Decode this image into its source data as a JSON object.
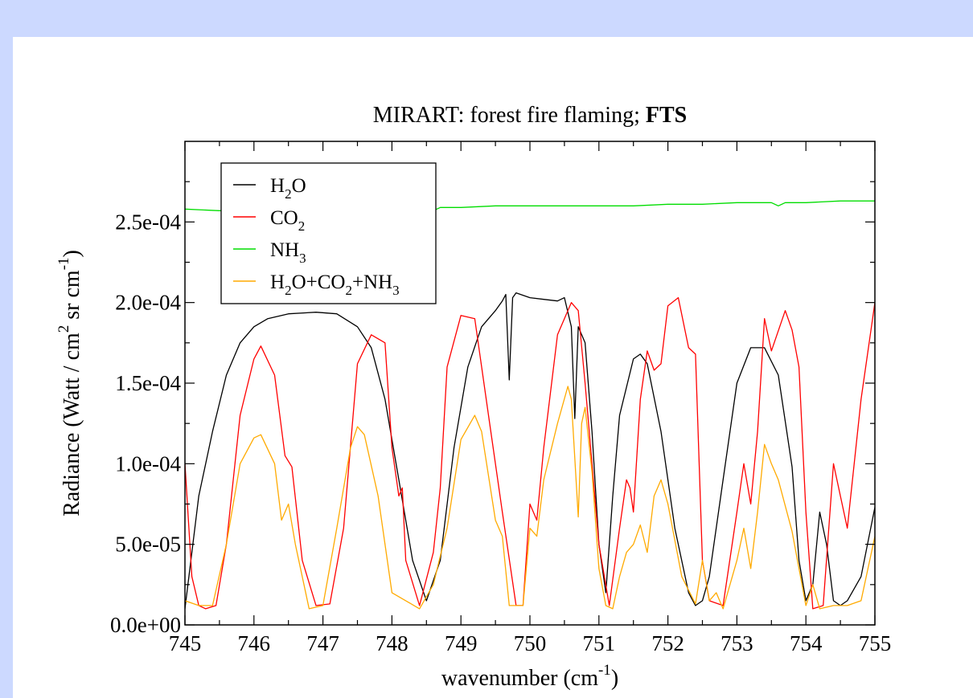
{
  "chart_data": {
    "type": "line",
    "title": {
      "prefix": "MIRART",
      "middle": ": forest fire flaming; ",
      "suffix": "FTS"
    },
    "xlabel": {
      "main": "wavenumber (cm",
      "sup": "-1",
      "close": ")"
    },
    "ylabel": {
      "main": "Radiance  (Watt / cm",
      "sup1": "2",
      "mid": " sr cm",
      "sup2": "-1",
      "close": ")"
    },
    "xlim": [
      745,
      755
    ],
    "ylim": [
      0,
      0.0003
    ],
    "grid": false,
    "legend_position": "top-left",
    "x_ticks": [
      {
        "value": 745,
        "label": "745"
      },
      {
        "value": 746,
        "label": "746"
      },
      {
        "value": 747,
        "label": "747"
      },
      {
        "value": 748,
        "label": "748"
      },
      {
        "value": 749,
        "label": "749"
      },
      {
        "value": 750,
        "label": "750"
      },
      {
        "value": 751,
        "label": "751"
      },
      {
        "value": 752,
        "label": "752"
      },
      {
        "value": 753,
        "label": "753"
      },
      {
        "value": 754,
        "label": "754"
      },
      {
        "value": 755,
        "label": "755"
      }
    ],
    "y_ticks": [
      {
        "value": 0,
        "label": "0.0e+00"
      },
      {
        "value": 5e-05,
        "label": "5.0e-05"
      },
      {
        "value": 0.0001,
        "label": "1.0e-04"
      },
      {
        "value": 0.00015,
        "label": "1.5e-04"
      },
      {
        "value": 0.0002,
        "label": "2.0e-04"
      },
      {
        "value": 0.00025,
        "label": "2.5e-04"
      }
    ],
    "series": [
      {
        "legend": [
          {
            "t": "H"
          },
          {
            "t": "2",
            "sub": true
          },
          {
            "t": "O"
          }
        ],
        "color": "#000000",
        "x": [
          745.0,
          745.2,
          745.4,
          745.6,
          745.8,
          746.0,
          746.2,
          746.5,
          746.9,
          747.2,
          747.5,
          747.7,
          747.9,
          748.1,
          748.3,
          748.5,
          748.7,
          748.9,
          749.1,
          749.3,
          749.5,
          749.6,
          749.65,
          749.7,
          749.75,
          749.8,
          750.0,
          750.2,
          750.4,
          750.5,
          750.6,
          750.65,
          750.7,
          750.8,
          750.9,
          751.0,
          751.1,
          751.2,
          751.3,
          751.5,
          751.6,
          751.7,
          751.9,
          752.1,
          752.3,
          752.4,
          752.5,
          752.6,
          752.8,
          753.0,
          753.2,
          753.4,
          753.6,
          753.8,
          753.9,
          754.0,
          754.1,
          754.2,
          754.3,
          754.4,
          754.5,
          754.6,
          754.8,
          755.0
        ],
        "y": [
          1e-05,
          8e-05,
          0.00012,
          0.000155,
          0.000175,
          0.000185,
          0.00019,
          0.000193,
          0.000194,
          0.000193,
          0.000185,
          0.000172,
          0.00014,
          9e-05,
          4e-05,
          1.5e-05,
          4e-05,
          0.00011,
          0.00016,
          0.000185,
          0.000195,
          0.000201,
          0.000205,
          0.000152,
          0.000203,
          0.000206,
          0.000203,
          0.000202,
          0.000201,
          0.000203,
          0.000185,
          0.000128,
          0.000185,
          0.000175,
          0.00012,
          5e-05,
          2e-05,
          8e-05,
          0.00013,
          0.000165,
          0.000168,
          0.000162,
          0.00012,
          6e-05,
          2e-05,
          1.2e-05,
          1.5e-05,
          3e-05,
          9e-05,
          0.00015,
          0.000172,
          0.000172,
          0.000155,
          9.8e-05,
          4e-05,
          1.5e-05,
          2.5e-05,
          7e-05,
          5e-05,
          1.5e-05,
          1.2e-05,
          1.5e-05,
          3e-05,
          7.3e-05
        ]
      },
      {
        "legend": [
          {
            "t": "CO"
          },
          {
            "t": "2",
            "sub": true
          }
        ],
        "color": "#ff0000",
        "x": [
          745.0,
          745.1,
          745.2,
          745.3,
          745.45,
          745.6,
          745.8,
          746.0,
          746.1,
          746.3,
          746.45,
          746.55,
          746.7,
          746.9,
          747.1,
          747.3,
          747.5,
          747.7,
          747.9,
          748.0,
          748.1,
          748.15,
          748.2,
          748.4,
          748.6,
          748.7,
          748.8,
          749.0,
          749.2,
          749.4,
          749.6,
          749.8,
          749.9,
          750.0,
          750.1,
          750.2,
          750.4,
          750.6,
          750.7,
          750.8,
          751.0,
          751.15,
          751.3,
          751.4,
          751.45,
          751.5,
          751.6,
          751.7,
          751.8,
          751.9,
          752.0,
          752.15,
          752.3,
          752.4,
          752.5,
          752.6,
          752.8,
          753.0,
          753.1,
          753.2,
          753.3,
          753.4,
          753.5,
          753.7,
          753.8,
          753.9,
          754.0,
          754.1,
          754.25,
          754.4,
          754.5,
          754.6,
          754.8,
          755.0
        ],
        "y": [
          0.0001,
          3e-05,
          1.2e-05,
          1e-05,
          1.2e-05,
          5e-05,
          0.00013,
          0.000165,
          0.000173,
          0.000155,
          0.000105,
          9.8e-05,
          4e-05,
          1.2e-05,
          1.3e-05,
          6e-05,
          0.000162,
          0.00018,
          0.000175,
          0.00011,
          8e-05,
          8.5e-05,
          4e-05,
          1.2e-05,
          4.5e-05,
          8.5e-05,
          0.00016,
          0.000192,
          0.00019,
          0.00013,
          7e-05,
          1.2e-05,
          1.2e-05,
          7.5e-05,
          6.5e-05,
          0.00011,
          0.00018,
          0.0002,
          0.000195,
          0.00015,
          5e-05,
          1.2e-05,
          6e-05,
          9e-05,
          8.5e-05,
          7e-05,
          0.00014,
          0.00017,
          0.000158,
          0.000162,
          0.000198,
          0.000203,
          0.000172,
          0.000168,
          4e-05,
          1.5e-05,
          1.2e-05,
          7e-05,
          0.0001,
          7.5e-05,
          0.00012,
          0.00019,
          0.00017,
          0.000195,
          0.000183,
          0.00016,
          7e-05,
          1e-05,
          1.2e-05,
          0.0001,
          8e-05,
          6e-05,
          0.00014,
          0.0002
        ]
      },
      {
        "legend": [
          {
            "t": "NH"
          },
          {
            "t": "3",
            "sub": true
          }
        ],
        "color": "#00dd00",
        "x": [
          745.0,
          745.5,
          746.0,
          746.5,
          747.0,
          747.5,
          748.0,
          748.5,
          748.6,
          748.7,
          749.0,
          749.5,
          750.0,
          750.5,
          751.0,
          751.5,
          752.0,
          752.5,
          753.0,
          753.5,
          753.6,
          753.7,
          754.0,
          754.5,
          755.0
        ],
        "y": [
          0.000258,
          0.000257,
          0.000258,
          0.000258,
          0.000258,
          0.000259,
          0.000259,
          0.000259,
          0.000257,
          0.000259,
          0.000259,
          0.00026,
          0.00026,
          0.00026,
          0.00026,
          0.00026,
          0.000261,
          0.000261,
          0.000262,
          0.000262,
          0.00026,
          0.000262,
          0.000262,
          0.000263,
          0.000263
        ]
      },
      {
        "legend": [
          {
            "t": "H"
          },
          {
            "t": "2",
            "sub": true
          },
          {
            "t": "O+CO"
          },
          {
            "t": "2",
            "sub": true
          },
          {
            "t": "+NH"
          },
          {
            "t": "3",
            "sub": true
          }
        ],
        "color": "#ffaa00",
        "x": [
          745.0,
          745.2,
          745.4,
          745.6,
          745.8,
          746.0,
          746.1,
          746.3,
          746.4,
          746.5,
          746.6,
          746.8,
          747.0,
          747.2,
          747.4,
          747.5,
          747.6,
          747.8,
          748.0,
          748.2,
          748.4,
          748.6,
          748.8,
          749.0,
          749.2,
          749.3,
          749.5,
          749.6,
          749.7,
          749.8,
          749.9,
          750.0,
          750.1,
          750.2,
          750.4,
          750.55,
          750.6,
          750.7,
          750.75,
          750.8,
          750.9,
          751.0,
          751.1,
          751.2,
          751.3,
          751.4,
          751.5,
          751.6,
          751.7,
          751.8,
          751.9,
          752.0,
          752.2,
          752.4,
          752.5,
          752.6,
          752.7,
          752.8,
          753.0,
          753.1,
          753.2,
          753.3,
          753.4,
          753.5,
          753.6,
          753.8,
          754.0,
          754.1,
          754.2,
          754.4,
          754.6,
          754.8,
          755.0
        ],
        "y": [
          1.5e-05,
          1.2e-05,
          1.2e-05,
          5e-05,
          0.0001,
          0.000116,
          0.000118,
          0.0001,
          6.5e-05,
          7.5e-05,
          5e-05,
          1e-05,
          1.2e-05,
          6e-05,
          0.00011,
          0.000123,
          0.000118,
          8e-05,
          2e-05,
          1.5e-05,
          1e-05,
          2.5e-05,
          6e-05,
          0.000115,
          0.00013,
          0.00012,
          6.5e-05,
          5.5e-05,
          1.2e-05,
          1.2e-05,
          1.2e-05,
          6e-05,
          5.5e-05,
          9e-05,
          0.000125,
          0.000148,
          0.00014,
          6.7e-05,
          0.000125,
          0.000135,
          9.5e-05,
          3.5e-05,
          1.2e-05,
          1e-05,
          3e-05,
          4.5e-05,
          5e-05,
          6.2e-05,
          4.5e-05,
          8e-05,
          9e-05,
          7.5e-05,
          3e-05,
          1.3e-05,
          4e-05,
          1.5e-05,
          2e-05,
          1e-05,
          4e-05,
          6e-05,
          3.5e-05,
          7e-05,
          0.000112,
          0.0001,
          9e-05,
          5.8e-05,
          1.2e-05,
          2.5e-05,
          1e-05,
          1.2e-05,
          1.2e-05,
          1.5e-05,
          5.5e-05
        ]
      }
    ]
  }
}
